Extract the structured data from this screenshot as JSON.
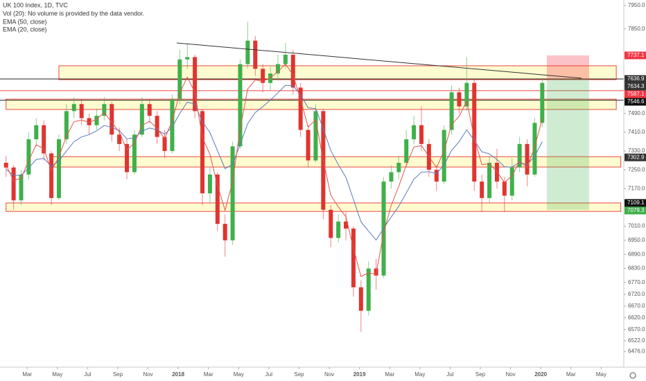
{
  "chart_data": {
    "type": "candlestick",
    "title": "UK 100 Index, 1D, TVC",
    "subtitle": "Vol (20): No volume is provided by the data vendor.",
    "xlim": [
      0.2,
      41.5
    ],
    "ylim": [
      6410,
      7973
    ],
    "xticks": [
      {
        "value": 2,
        "label": "Mar"
      },
      {
        "value": 4,
        "label": "May"
      },
      {
        "value": 6,
        "label": "Jul"
      },
      {
        "value": 8,
        "label": "Sep"
      },
      {
        "value": 10,
        "label": "Nov"
      },
      {
        "value": 12,
        "label": "2018"
      },
      {
        "value": 14,
        "label": "Mar"
      },
      {
        "value": 16,
        "label": "May"
      },
      {
        "value": 18,
        "label": "Jul"
      },
      {
        "value": 20,
        "label": "Sep"
      },
      {
        "value": 22,
        "label": "Nov"
      },
      {
        "value": 24,
        "label": "2019"
      },
      {
        "value": 26,
        "label": "Mar"
      },
      {
        "value": 28,
        "label": "May"
      },
      {
        "value": 30,
        "label": "Jul"
      },
      {
        "value": 32,
        "label": "Sep"
      },
      {
        "value": 34,
        "label": "Nov"
      },
      {
        "value": 36,
        "label": "2020"
      },
      {
        "value": 38,
        "label": "Mar"
      },
      {
        "value": 40,
        "label": "May"
      }
    ],
    "yticks": [
      {
        "value": 7950,
        "label": "7950.0"
      },
      {
        "value": 7850,
        "label": "7850.0"
      },
      {
        "value": 7490,
        "label": "7490.0"
      },
      {
        "value": 7410,
        "label": "7410.0"
      },
      {
        "value": 7330,
        "label": "7330.0"
      },
      {
        "value": 7250,
        "label": "7250.0"
      },
      {
        "value": 7170,
        "label": "7170.0"
      },
      {
        "value": 7010,
        "label": "7010.0"
      },
      {
        "value": 6950,
        "label": "6950.0"
      },
      {
        "value": 6890,
        "label": "6890.0"
      },
      {
        "value": 6830,
        "label": "6830.0"
      },
      {
        "value": 6770,
        "label": "6770.0"
      },
      {
        "value": 6720,
        "label": "6720.0"
      },
      {
        "value": 6670,
        "label": "6670.0"
      },
      {
        "value": 6620,
        "label": "6620.0"
      },
      {
        "value": 6570,
        "label": "6570.0"
      },
      {
        "value": 6522,
        "label": "6522.0"
      },
      {
        "value": 6476,
        "label": "6476.0"
      }
    ],
    "up_color": "#3fb04a",
    "down_color": "#e0342f",
    "x": [
      0.6,
      1.1,
      1.6,
      2.1,
      2.6,
      3.1,
      3.6,
      4.1,
      4.6,
      5.1,
      5.6,
      6.1,
      6.6,
      7.1,
      7.6,
      8.1,
      8.6,
      9.1,
      9.6,
      10.1,
      10.6,
      11.1,
      11.6,
      12.1,
      12.6,
      13.1,
      13.6,
      14.1,
      14.6,
      15.1,
      15.6,
      16.1,
      16.6,
      17.1,
      17.6,
      18.1,
      18.6,
      19.1,
      19.6,
      20.1,
      20.6,
      21.1,
      21.6,
      22.1,
      22.6,
      23.1,
      23.6,
      24.1,
      24.6,
      25.1,
      25.6,
      26.1,
      26.6,
      27.1,
      27.6,
      28.1,
      28.6,
      29.1,
      29.6,
      30.1,
      30.6,
      31.1,
      31.6,
      32.1,
      32.6,
      33.1,
      33.6,
      34.1,
      34.6,
      35.1,
      35.6,
      36.1
    ],
    "open": [
      7280,
      7260,
      7120,
      7230,
      7380,
      7440,
      7320,
      7130,
      7380,
      7500,
      7530,
      7470,
      7440,
      7480,
      7530,
      7400,
      7360,
      7240,
      7400,
      7530,
      7480,
      7390,
      7330,
      7550,
      7720,
      7730,
      7500,
      7150,
      7230,
      7020,
      6950,
      7350,
      7700,
      7800,
      7680,
      7620,
      7660,
      7700,
      7740,
      7600,
      7420,
      7290,
      7500,
      7080,
      6960,
      7030,
      7000,
      6750,
      6650,
      6830,
      6800,
      7200,
      7240,
      7280,
      7380,
      7440,
      7360,
      7250,
      7200,
      7420,
      7580,
      7520,
      7620,
      7200,
      7130,
      7280,
      7200,
      7140,
      7260,
      7360,
      7230,
      7450
    ],
    "high": [
      7310,
      7270,
      7250,
      7410,
      7470,
      7460,
      7330,
      7400,
      7530,
      7560,
      7550,
      7490,
      7510,
      7560,
      7540,
      7430,
      7380,
      7420,
      7560,
      7550,
      7500,
      7420,
      7570,
      7760,
      7790,
      7740,
      7510,
      7260,
      7240,
      7060,
      7370,
      7720,
      7880,
      7820,
      7700,
      7690,
      7740,
      7790,
      7760,
      7620,
      7440,
      7530,
      7510,
      7100,
      7060,
      7070,
      7010,
      6780,
      6860,
      6870,
      7220,
      7270,
      7310,
      7420,
      7480,
      7520,
      7380,
      7270,
      7440,
      7610,
      7600,
      7730,
      7640,
      7230,
      7310,
      7340,
      7220,
      7300,
      7390,
      7380,
      7470,
      7640
    ],
    "low": [
      7220,
      7080,
      7100,
      7210,
      7350,
      7290,
      7100,
      7120,
      7360,
      7470,
      7440,
      7400,
      7420,
      7460,
      7370,
      7330,
      7210,
      7230,
      7390,
      7450,
      7360,
      7300,
      7320,
      7530,
      7680,
      7470,
      7100,
      7110,
      6990,
      6880,
      6930,
      7340,
      7680,
      7650,
      7580,
      7590,
      7630,
      7680,
      7570,
      7390,
      7260,
      7280,
      7040,
      6920,
      6940,
      6950,
      6710,
      6560,
      6630,
      6740,
      6790,
      7170,
      7210,
      7260,
      7360,
      7330,
      7220,
      7160,
      7190,
      7400,
      7490,
      7500,
      7160,
      7070,
      7110,
      7170,
      7070,
      7120,
      7240,
      7180,
      7220,
      7430
    ],
    "close": [
      7260,
      7120,
      7230,
      7380,
      7440,
      7320,
      7130,
      7380,
      7500,
      7530,
      7470,
      7440,
      7480,
      7530,
      7400,
      7360,
      7240,
      7400,
      7530,
      7480,
      7390,
      7330,
      7550,
      7720,
      7730,
      7500,
      7150,
      7230,
      7020,
      6950,
      7350,
      7700,
      7800,
      7680,
      7620,
      7660,
      7700,
      7740,
      7600,
      7420,
      7290,
      7500,
      7080,
      6960,
      7030,
      7000,
      6750,
      6650,
      6830,
      6800,
      7200,
      7240,
      7280,
      7380,
      7440,
      7360,
      7250,
      7200,
      7420,
      7580,
      7520,
      7620,
      7200,
      7130,
      7280,
      7200,
      7140,
      7260,
      7360,
      7230,
      7450,
      7620
    ],
    "series": [
      {
        "name": "EMA (50, close)",
        "color": "#5a78c0",
        "values": [
          7252,
          7226,
          7227,
          7258,
          7294,
          7299,
          7265,
          7288,
          7330,
          7370,
          7390,
          7400,
          7416,
          7439,
          7431,
          7417,
          7382,
          7386,
          7415,
          7428,
          7420,
          7402,
          7432,
          7490,
          7538,
          7530,
          7454,
          7409,
          7331,
          7255,
          7274,
          7359,
          7447,
          7494,
          7519,
          7547,
          7578,
          7610,
          7608,
          7570,
          7514,
          7511,
          7425,
          7332,
          7272,
          7218,
          7124,
          7029,
          6989,
          6951,
          7001,
          7049,
          7095,
          7152,
          7210,
          7240,
          7242,
          7234,
          7271,
          7333,
          7370,
          7420,
          7376,
          7327,
          7318,
          7294,
          7263,
          7262,
          7282,
          7272,
          7308,
          7370
        ]
      },
      {
        "name": "EMA (20, close)",
        "color": "#e5534b",
        "values": [
          7271,
          7203,
          7215,
          7289,
          7357,
          7340,
          7246,
          7306,
          7393,
          7455,
          7462,
          7452,
          7465,
          7494,
          7452,
          7411,
          7334,
          7364,
          7439,
          7457,
          7427,
          7383,
          7458,
          7576,
          7645,
          7580,
          7387,
          7316,
          7183,
          7078,
          7200,
          7425,
          7594,
          7633,
          7627,
          7642,
          7668,
          7700,
          7655,
          7549,
          7432,
          7463,
          7291,
          7142,
          7092,
          7051,
          6916,
          6796,
          6811,
          6806,
          6983,
          7099,
          7180,
          7270,
          7347,
          7353,
          7307,
          7259,
          7331,
          7443,
          7478,
          7542,
          7388,
          7272,
          7276,
          7242,
          7196,
          7225,
          7286,
          7261,
          7346,
          7469
        ]
      }
    ],
    "zones": [
      {
        "x": [
          4.1,
          41.0
        ],
        "top": 7693,
        "bottom": 7634
      },
      {
        "x": [
          0.6,
          41.0
        ],
        "top": 7551,
        "bottom": 7507
      },
      {
        "x": [
          3.6,
          41.3
        ],
        "top": 7306,
        "bottom": 7262
      },
      {
        "x": [
          0.6,
          41.3
        ],
        "top": 7109,
        "bottom": 7073
      }
    ],
    "hlines": [
      7636.9,
      7546.6,
      7587.1
    ],
    "trendline": {
      "x": [
        11.9,
        38.7
      ],
      "y": [
        7790,
        7640
      ]
    },
    "position": {
      "x": [
        36.4,
        39.2
      ],
      "entry": 7636.9,
      "stop": 7737.1,
      "target": 7079.3
    },
    "price_tags": [
      {
        "value": 7737.1,
        "color": "#f23645"
      },
      {
        "value": 7636.9,
        "color": "#333333"
      },
      {
        "value": 7634.3,
        "color": "#333333"
      },
      {
        "value": 7587.1,
        "color": "#f23645"
      },
      {
        "value": 7546.6,
        "color": "#111111"
      },
      {
        "value": 7302.9,
        "color": "#333333"
      },
      {
        "value": 7109.1,
        "color": "#111111"
      },
      {
        "value": 7079.3,
        "color": "#3fb04a"
      }
    ]
  }
}
